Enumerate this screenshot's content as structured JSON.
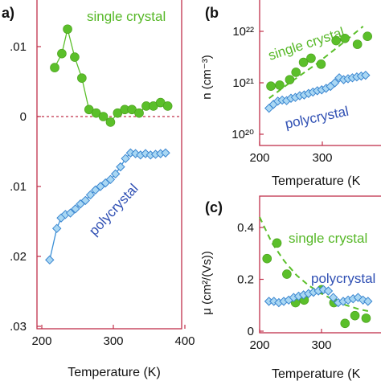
{
  "chart_data": [
    {
      "panel_label": "a)",
      "type": "line",
      "xlabel": "Temperature (K)",
      "ylabel": "",
      "xlim": [
        200,
        400
      ],
      "ylim": [
        -0.03,
        0.022
      ],
      "x_ticks": [
        200,
        300,
        400
      ],
      "x_tick_labels": [
        "200",
        "300",
        "400"
      ],
      "y_ticks": [
        0.01,
        0,
        -0.01,
        -0.02,
        -0.03
      ],
      "y_tick_labels": [
        ".01",
        "0",
        ".01",
        ".02",
        ".03"
      ],
      "zero_reference_line": true,
      "series": [
        {
          "name": "single crystal",
          "color": "#5bbf2a",
          "marker": "circle",
          "x": [
            218,
            228,
            236,
            246,
            256,
            266,
            276,
            286,
            296,
            306,
            316,
            326,
            336,
            346,
            356,
            366,
            376
          ],
          "y": [
            0.007,
            0.009,
            0.0125,
            0.0085,
            0.0055,
            0.001,
            0.0005,
            0.0,
            -0.0008,
            0.0005,
            0.001,
            0.001,
            0.0005,
            0.0015,
            0.0015,
            0.002,
            0.0015
          ]
        },
        {
          "name": "polycrystal",
          "color": "#3a8fd6",
          "marker": "diamond",
          "x": [
            211,
            221,
            227,
            233,
            240,
            247,
            254,
            261,
            268,
            275,
            282,
            289,
            296,
            303,
            310,
            317,
            324,
            331,
            338,
            345,
            352,
            359,
            366,
            373
          ],
          "y": [
            -0.0205,
            -0.016,
            -0.0145,
            -0.014,
            -0.0138,
            -0.0132,
            -0.0125,
            -0.012,
            -0.0112,
            -0.0105,
            -0.01,
            -0.0095,
            -0.009,
            -0.0082,
            -0.0072,
            -0.006,
            -0.0052,
            -0.0053,
            -0.0055,
            -0.0053,
            -0.0055,
            -0.0054,
            -0.0053,
            -0.0052
          ]
        }
      ]
    },
    {
      "panel_label": "(b",
      "type": "scatter",
      "xlabel": "Temperature (K",
      "ylabel": "n (cm⁻³)",
      "y_scale": "log",
      "xlim": [
        200,
        400
      ],
      "ylim": [
        1e+20,
        3e+22
      ],
      "x_ticks": [
        200,
        300
      ],
      "x_tick_labels": [
        "200",
        "300"
      ],
      "y_ticks": [
        1e+20,
        1e+21,
        1e+22
      ],
      "y_tick_labels": [
        "10²⁰",
        "10²¹",
        "10²²"
      ],
      "series": [
        {
          "name": "single crystal",
          "color": "#5bbf2a",
          "marker": "circle",
          "x": [
            218,
            232,
            248,
            258,
            270,
            282,
            298,
            322,
            336,
            356,
            372
          ],
          "y": [
            8.6e+20,
            9e+20,
            1.15e+21,
            1.6e+21,
            2.5e+21,
            3e+21,
            2.3e+21,
            6.6e+21,
            7.3e+21,
            5.6e+21,
            8e+21
          ]
        },
        {
          "name": "polycrystal",
          "color": "#3a8fd6",
          "marker": "diamond",
          "x": [
            215,
            222,
            229,
            236,
            243,
            250,
            257,
            264,
            271,
            278,
            285,
            292,
            299,
            306,
            313,
            320,
            327,
            334,
            341,
            348,
            355,
            362,
            369
          ],
          "y": [
            3.2e+20,
            3.8e+20,
            4.4e+20,
            4.6e+20,
            4.5e+20,
            5e+20,
            5.2e+20,
            5.6e+20,
            5.8e+20,
            6.2e+20,
            6.6e+20,
            7e+20,
            7.3e+20,
            7.8e+20,
            8.5e+20,
            1e+21,
            1.25e+21,
            1.15e+21,
            1.2e+21,
            1.25e+21,
            1.3e+21,
            1.35e+21,
            1.4e+21
          ]
        }
      ],
      "fit_curve": {
        "style": "dashed",
        "color": "#5bbf2a",
        "x": [
          215,
          240,
          265,
          290,
          315,
          340,
          365
        ],
        "y": [
          5e+20,
          8.5e+20,
          1.4e+21,
          2.3e+21,
          4e+21,
          7e+21,
          1.25e+22
        ]
      }
    },
    {
      "panel_label": "(c)",
      "type": "scatter",
      "xlabel": "Temperature (K",
      "ylabel": "μ (cm²/(Vs))",
      "xlim": [
        200,
        400
      ],
      "ylim": [
        0,
        0.45
      ],
      "x_ticks": [
        200,
        300
      ],
      "x_tick_labels": [
        "200",
        "300"
      ],
      "y_ticks": [
        0,
        0.2,
        0.4
      ],
      "y_tick_labels": [
        "0",
        "0.2",
        "0.4"
      ],
      "series": [
        {
          "name": "single crystal",
          "color": "#5bbf2a",
          "marker": "circle",
          "x": [
            212,
            228,
            244,
            258,
            272,
            300,
            320,
            338,
            354,
            372
          ],
          "y": [
            0.28,
            0.34,
            0.22,
            0.11,
            0.12,
            0.16,
            0.11,
            0.03,
            0.06,
            0.05
          ]
        },
        {
          "name": "polycrystal",
          "color": "#3a8fd6",
          "marker": "diamond",
          "x": [
            215,
            223,
            231,
            239,
            247,
            255,
            263,
            271,
            279,
            287,
            295,
            303,
            311,
            319,
            327,
            335,
            343,
            351,
            359,
            367,
            375
          ],
          "y": [
            0.115,
            0.115,
            0.11,
            0.115,
            0.12,
            0.13,
            0.135,
            0.14,
            0.145,
            0.15,
            0.155,
            0.16,
            0.155,
            0.13,
            0.11,
            0.115,
            0.12,
            0.125,
            0.13,
            0.12,
            0.115
          ]
        }
      ],
      "fit_curve": {
        "style": "dashed",
        "color": "#5bbf2a",
        "x": [
          200,
          220,
          240,
          260,
          280,
          300,
          320,
          340,
          360,
          380
        ],
        "y": [
          0.44,
          0.34,
          0.27,
          0.215,
          0.175,
          0.145,
          0.12,
          0.1,
          0.085,
          0.075
        ]
      }
    }
  ]
}
